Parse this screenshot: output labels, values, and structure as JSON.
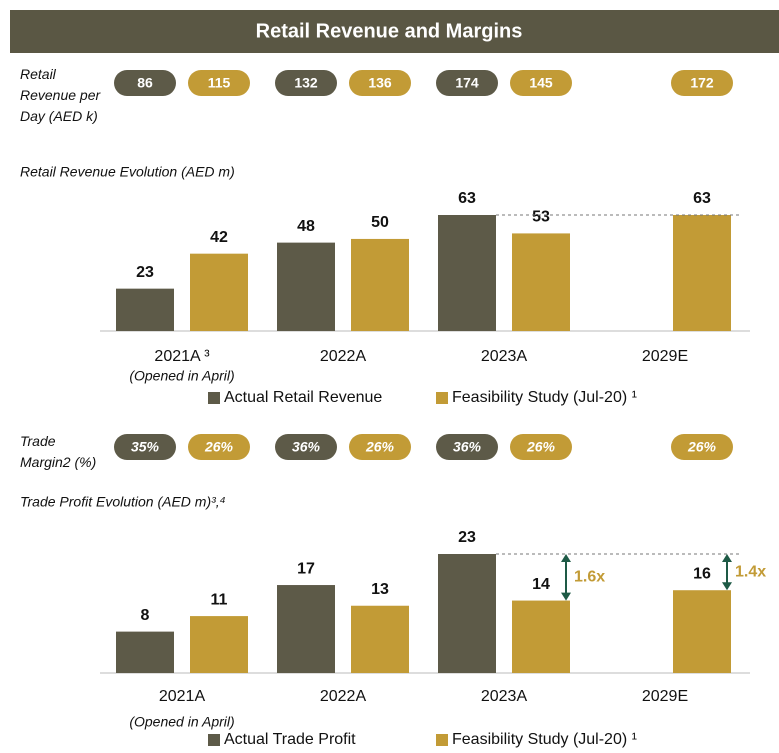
{
  "header": {
    "title": "Retail Revenue and Margins"
  },
  "chart_data": [
    {
      "type": "bar",
      "row_label": "Retail Revenue per Day (AED k)",
      "title": "Retail Revenue Evolution (AED m)",
      "categories": [
        "2021A ³",
        "2022A",
        "2023A",
        "2029E"
      ],
      "category_notes": [
        "(Opened in April)",
        null,
        null,
        null
      ],
      "series": [
        {
          "name": "Actual Retail Revenue",
          "color": "#5d5a48",
          "values": [
            23,
            48,
            63,
            null
          ],
          "row_values": [
            86,
            132,
            174,
            null
          ]
        },
        {
          "name": "Feasibility Study (Jul-20) ¹",
          "color": "#c29b36",
          "values": [
            42,
            50,
            53,
            63
          ],
          "row_values": [
            115,
            136,
            145,
            172
          ]
        }
      ],
      "annotations": []
    },
    {
      "type": "bar",
      "row_label": "Trade Margin2 (%)",
      "title": "Trade Profit Evolution (AED m)³,⁴",
      "categories": [
        "2021A",
        "2022A",
        "2023A",
        "2029E"
      ],
      "category_notes": [
        "(Opened in April)",
        null,
        null,
        null
      ],
      "series": [
        {
          "name": "Actual Trade Profit",
          "color": "#5d5a48",
          "values": [
            8,
            17,
            23,
            null
          ],
          "row_values": [
            35,
            36,
            36,
            null
          ],
          "row_value_labels": [
            "35%",
            "36%",
            "36%",
            null
          ]
        },
        {
          "name": "Feasibility Study (Jul-20) ¹",
          "color": "#c29b36",
          "values": [
            11,
            13,
            14,
            16
          ],
          "row_values": [
            26,
            26,
            26,
            26
          ],
          "row_value_labels": [
            "26%",
            "26%",
            "26%",
            "26%"
          ]
        }
      ],
      "annotations": [
        {
          "text": "1.6x"
        },
        {
          "text": "1.4x"
        }
      ]
    }
  ]
}
